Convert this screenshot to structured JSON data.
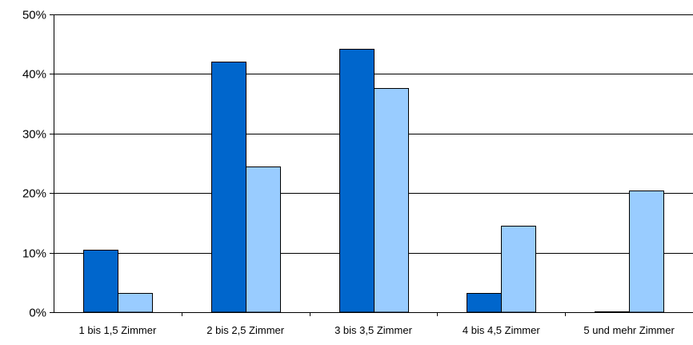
{
  "chart_data": {
    "type": "bar",
    "title": "",
    "xlabel": "",
    "ylabel": "",
    "categories": [
      "1 bis 1,5 Zimmer",
      "2 bis 2,5 Zimmer",
      "3 bis 3,5 Zimmer",
      "4 bis 4,5 Zimmer",
      "5 und mehr Zimmer"
    ],
    "series": [
      {
        "color": "#0066CC",
        "values": [
          10.5,
          42.1,
          44.2,
          3.2,
          0.2
        ]
      },
      {
        "color": "#99CCFF",
        "values": [
          3.2,
          24.5,
          37.6,
          14.5,
          20.4
        ]
      }
    ],
    "ylim": [
      0,
      50
    ],
    "yticks": [
      0,
      10,
      20,
      30,
      40,
      50
    ],
    "ytick_labels": [
      "0%",
      "10%",
      "20%",
      "30%",
      "40%",
      "50%"
    ],
    "grid": true,
    "legend": "none"
  }
}
